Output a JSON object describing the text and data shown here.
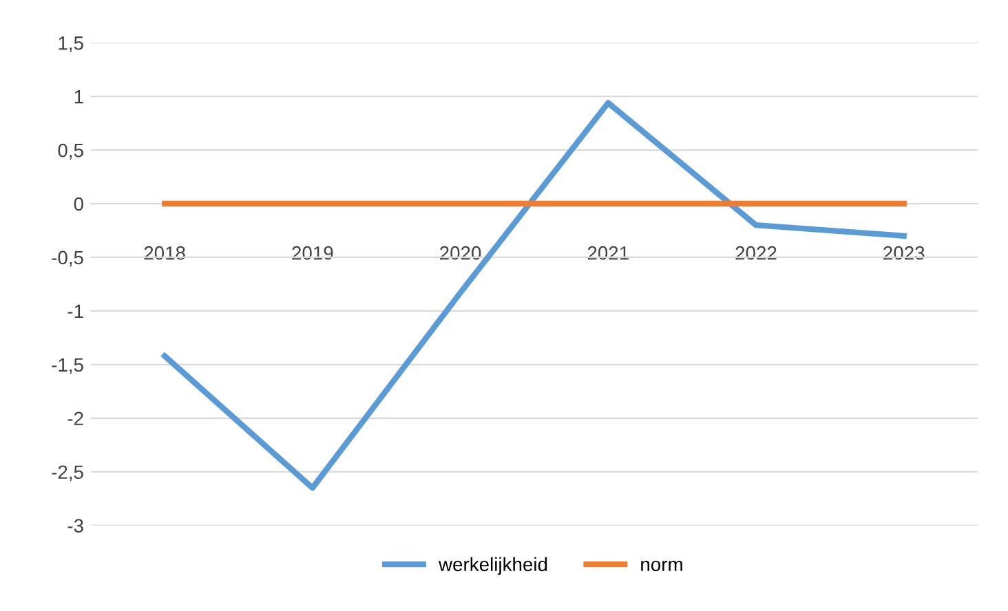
{
  "chart_data": {
    "type": "line",
    "categories": [
      "2018",
      "2019",
      "2020",
      "2021",
      "2022",
      "2023"
    ],
    "series": [
      {
        "name": "werkelijkheid",
        "color": "#5b9bd5",
        "values": [
          -1.42,
          -2.65,
          -0.83,
          0.94,
          -0.2,
          -0.3
        ]
      },
      {
        "name": "norm",
        "color": "#ed7d31",
        "values": [
          0,
          0,
          0,
          0,
          0,
          0
        ]
      }
    ],
    "ylim": [
      -3,
      1.5
    ],
    "yticks": [
      {
        "value": 1.5,
        "label": "1,5"
      },
      1,
      {
        "value": 0.5,
        "label": "0,5"
      },
      0,
      {
        "value": -0.5,
        "label": "-0,5"
      },
      -1,
      {
        "value": -1.5,
        "label": "-1,5"
      },
      -2,
      {
        "value": -2.5,
        "label": "-2,5"
      },
      -3
    ],
    "grid": "y",
    "legend": "bottom",
    "marker": "none",
    "line_style": "solid"
  }
}
